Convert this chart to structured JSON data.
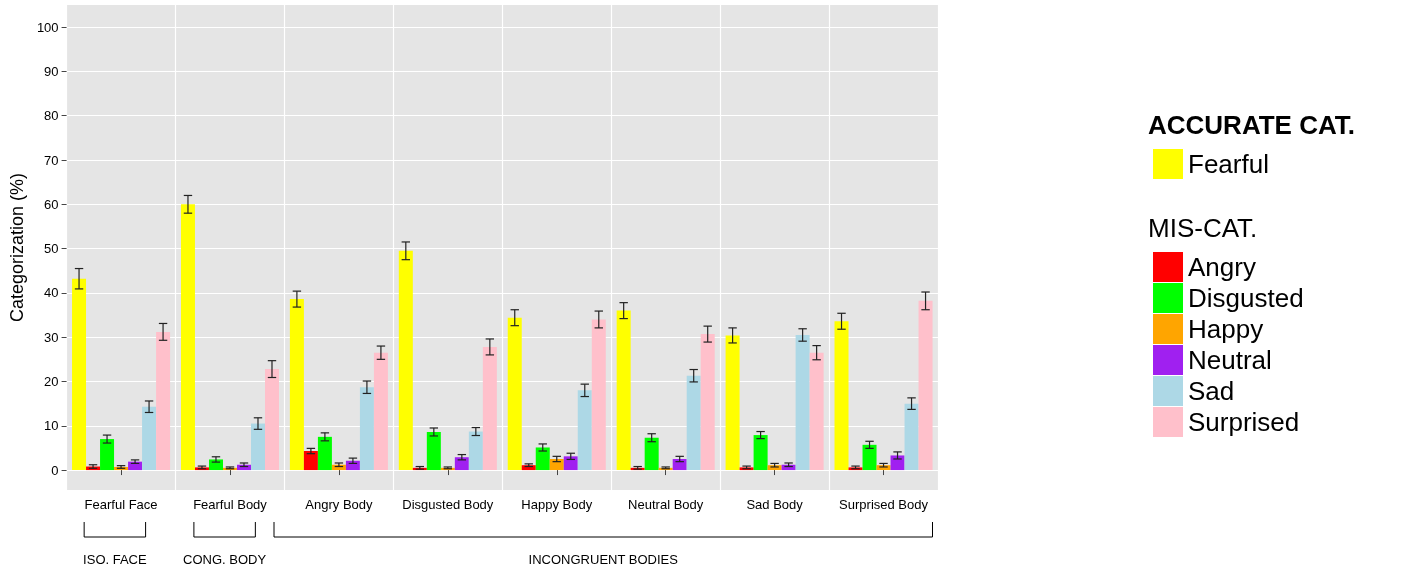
{
  "chart_data": {
    "type": "bar",
    "ylabel": "Categorization (%)",
    "categories": [
      "Fearful Face",
      "Fearful Body",
      "Angry Body",
      "Disgusted Body",
      "Happy Body",
      "Neutral Body",
      "Sad Body",
      "Surprised Body"
    ],
    "series": [
      {
        "name": "Fearful",
        "color": "#ffff00",
        "values": [
          43.2,
          60,
          38.6,
          49.5,
          34.4,
          36,
          30.4,
          33.6
        ],
        "errors": [
          2.3,
          2,
          1.8,
          2,
          1.8,
          1.8,
          1.7,
          1.8
        ]
      },
      {
        "name": "Angry",
        "color": "#ff0000",
        "values": [
          0.8,
          0.6,
          4.3,
          0.5,
          1.1,
          0.5,
          0.6,
          0.6
        ],
        "errors": [
          0.4,
          0.3,
          0.6,
          0.3,
          0.3,
          0.3,
          0.3,
          0.3
        ]
      },
      {
        "name": "Disgusted",
        "color": "#00ff00",
        "values": [
          7,
          2.4,
          7.5,
          8.6,
          5.1,
          7.3,
          7.9,
          5.7
        ],
        "errors": [
          0.9,
          0.6,
          0.9,
          0.9,
          0.8,
          0.9,
          0.8,
          0.8
        ]
      },
      {
        "name": "Happy",
        "color": "#ffa500",
        "values": [
          0.7,
          0.5,
          1.2,
          0.5,
          2.5,
          0.5,
          1.1,
          1.1
        ],
        "errors": [
          0.3,
          0.2,
          0.4,
          0.2,
          0.6,
          0.2,
          0.4,
          0.4
        ]
      },
      {
        "name": "Neutral",
        "color": "#a020f0",
        "values": [
          1.9,
          1.2,
          2.1,
          2.9,
          3.1,
          2.5,
          1.2,
          3.3
        ],
        "errors": [
          0.4,
          0.4,
          0.6,
          0.6,
          0.7,
          0.6,
          0.4,
          0.8
        ]
      },
      {
        "name": "Sad",
        "color": "#add8e6",
        "values": [
          14.3,
          10.5,
          18.7,
          8.7,
          18,
          21.3,
          30.5,
          15
        ],
        "errors": [
          1.3,
          1.3,
          1.4,
          0.9,
          1.4,
          1.4,
          1.4,
          1.3
        ]
      },
      {
        "name": "Surprised",
        "color": "#ffc0cb",
        "values": [
          31.2,
          22.8,
          26.5,
          27.8,
          34,
          30.7,
          26.5,
          38.2
        ],
        "errors": [
          1.9,
          1.9,
          1.5,
          1.8,
          1.9,
          1.8,
          1.6,
          2
        ]
      }
    ],
    "ylim": [
      -4.5,
      105
    ],
    "yticks": [
      0,
      10,
      20,
      30,
      40,
      50,
      60,
      70,
      80,
      90,
      100
    ],
    "grid": true,
    "legend": "right",
    "legend_title": [
      "ACCURATE CAT.",
      "MIS-CAT."
    ],
    "annotations": [
      "ISO. FACE",
      "CONG. BODY",
      "INCONGRUENT BODIES"
    ]
  }
}
